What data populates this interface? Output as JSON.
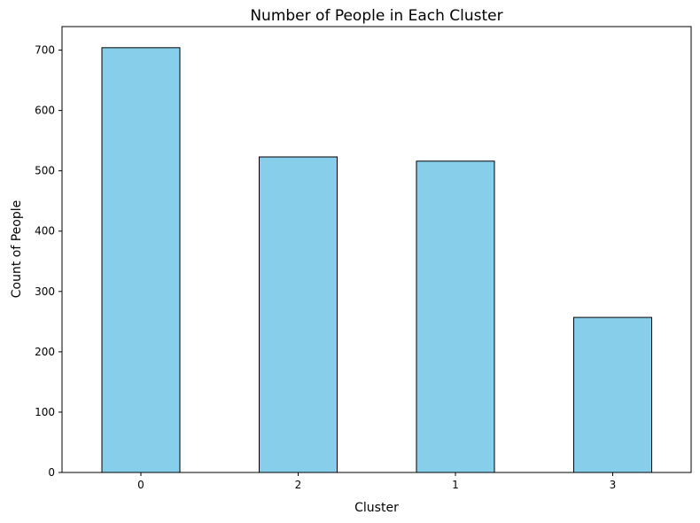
{
  "chart_data": {
    "type": "bar",
    "title": "Number of People in Each Cluster",
    "xlabel": "Cluster",
    "ylabel": "Count of People",
    "categories": [
      "0",
      "2",
      "1",
      "3"
    ],
    "values": [
      704,
      523,
      516,
      257
    ],
    "ylim": [
      0,
      739
    ],
    "yticks": [
      0,
      100,
      200,
      300,
      400,
      500,
      600,
      700
    ],
    "grid": false,
    "legend": "none",
    "colors": {
      "bar_fill": "#87ceeb",
      "bar_edge": "#000000",
      "axes": "#000000"
    }
  }
}
